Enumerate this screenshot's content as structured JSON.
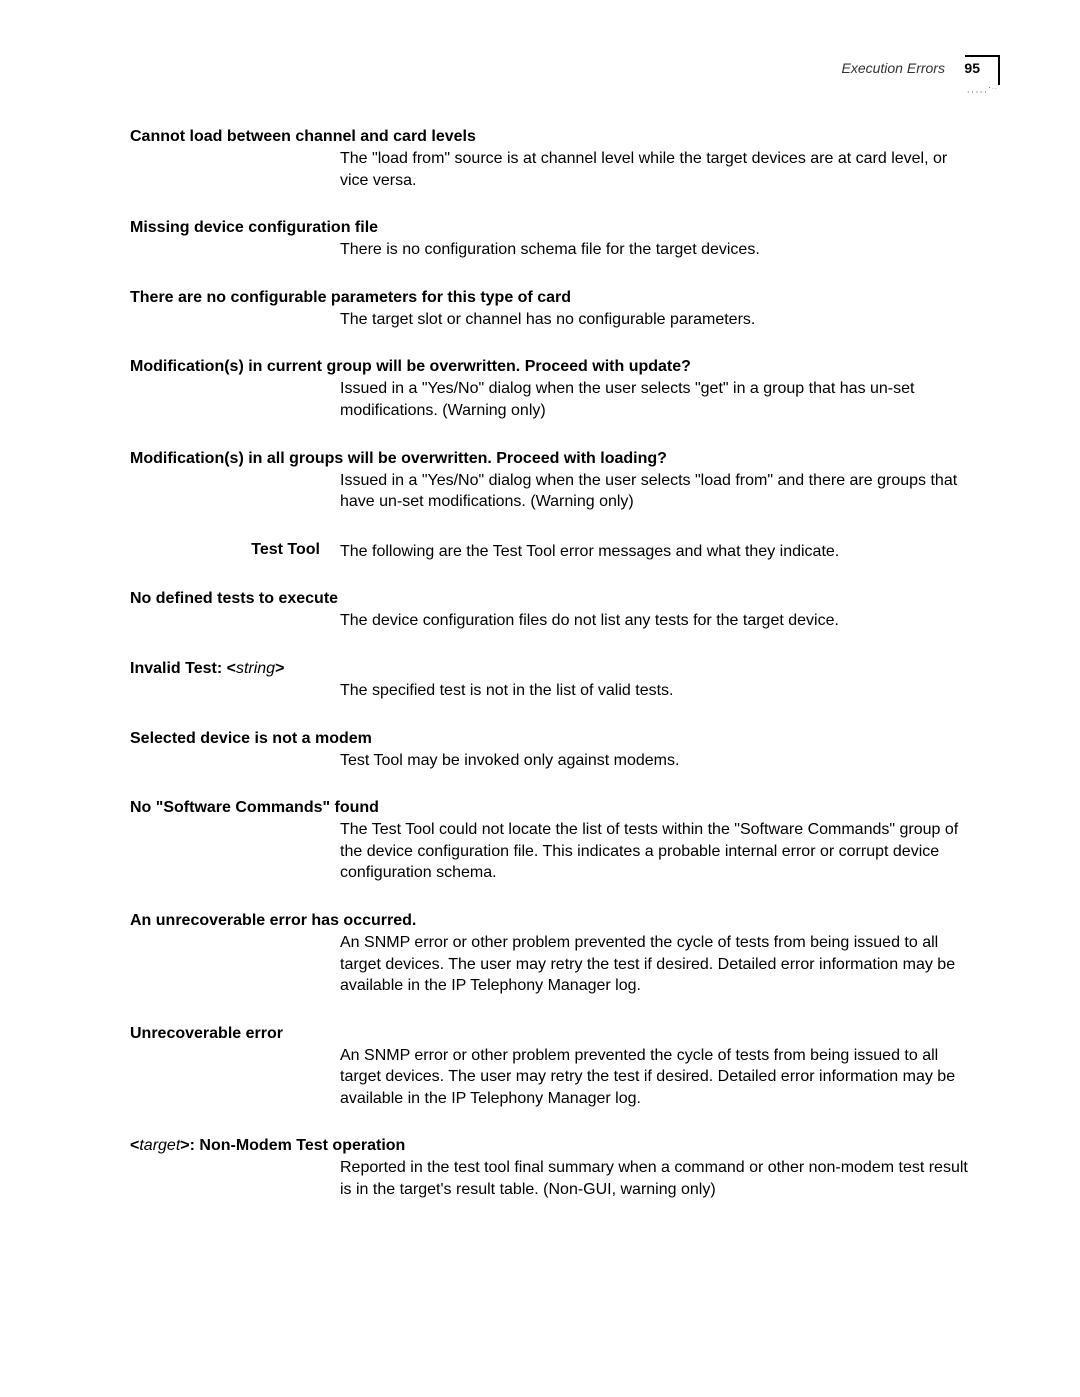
{
  "header": {
    "title": "Execution Errors",
    "page_number": "95"
  },
  "entries": [
    {
      "heading": "Cannot load between channel and card levels",
      "body": "The \"load from\" source is at channel level while the target devices are at card level, or vice versa."
    },
    {
      "heading": "Missing device configuration file",
      "body": "There is no configuration schema file for the target devices."
    },
    {
      "heading": "There are no configurable parameters for this type of card",
      "body": "The target slot or channel has no configurable parameters."
    },
    {
      "heading": "Modification(s) in current group will be overwritten.  Proceed with update?",
      "body": "Issued in a \"Yes/No\" dialog when the user selects \"get\" in a group that has un-set modifications.  (Warning only)"
    },
    {
      "heading": "Modification(s) in all groups will be overwritten.  Proceed with loading?",
      "body": "Issued in a \"Yes/No\" dialog when the user selects \"load from\" and there are groups that have un-set modifications.  (Warning only)"
    }
  ],
  "section_label": {
    "left": "Test Tool",
    "right": "The following are the Test Tool error messages and what they indicate."
  },
  "test_entries": [
    {
      "heading": "No defined tests to execute",
      "body": "The device configuration files do not list any tests for the target device."
    },
    {
      "heading_prefix": "Invalid Test: <",
      "heading_var": "string",
      "heading_suffix": ">",
      "body": "The specified test is not in the list of valid tests."
    },
    {
      "heading": "Selected device is not a modem",
      "body": "Test Tool may be invoked only against modems."
    },
    {
      "heading": "No \"Software Commands\" found",
      "body": "The Test Tool could not locate the list of tests within the \"Software Commands\" group of the device configuration file. This indicates a probable internal error or corrupt device configuration schema."
    },
    {
      "heading": "An unrecoverable error has occurred.",
      "body": "An SNMP error or other problem prevented the cycle of tests from being issued to all target devices. The user may retry the test if desired. Detailed error information may be available in the IP Telephony Manager log."
    },
    {
      "heading": "Unrecoverable error",
      "body": "An SNMP error or other problem prevented the cycle of tests from being issued to all target devices. The user may retry the test if desired. Detailed error information may be available in the IP Telephony Manager log."
    },
    {
      "heading_prefix": "<",
      "heading_var": "target",
      "heading_suffix": ">: Non-Modem Test operation",
      "body": "Reported in the test tool final summary when a command or other non-modem test result is in the target's result table. (Non-GUI, warning only)"
    }
  ]
}
